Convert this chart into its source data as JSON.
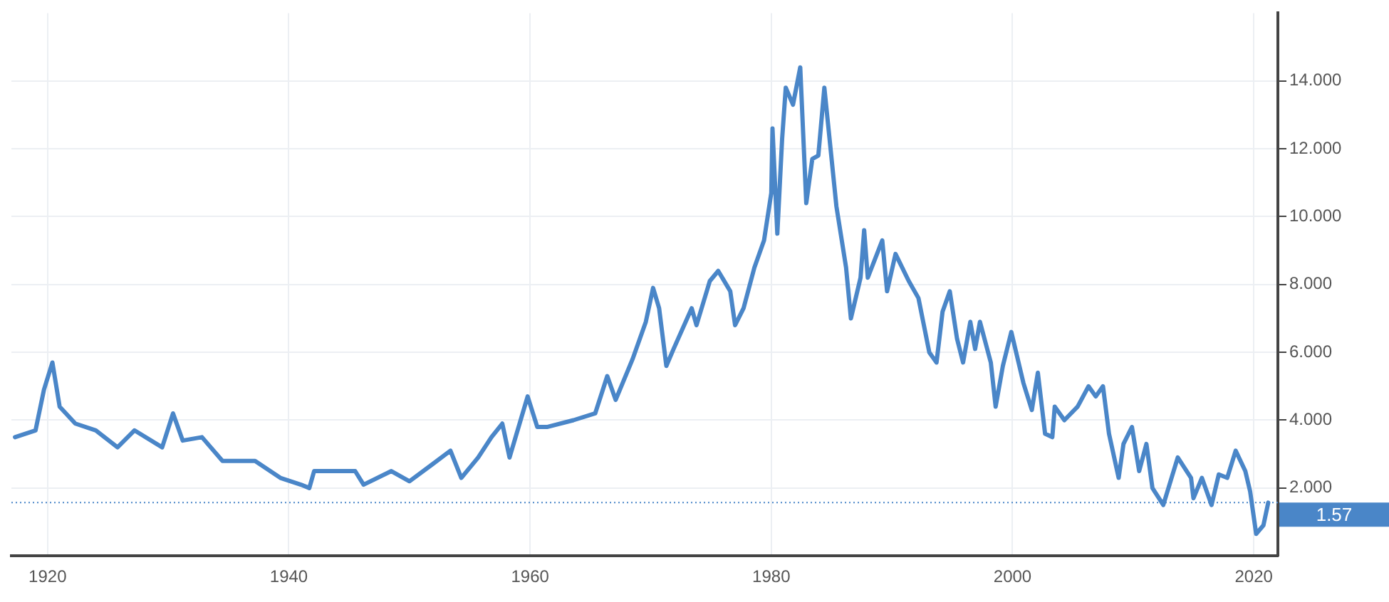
{
  "chart_data": {
    "type": "line",
    "color": "#4a86c8",
    "marker": "none",
    "grid": true,
    "x": [
      1917.3,
      1919,
      1919.7,
      1920.4,
      1921,
      1922.3,
      1924,
      1925.8,
      1927.2,
      1929.5,
      1930.4,
      1931.2,
      1932.8,
      1934.5,
      1937.2,
      1939.3,
      1941,
      1941.7,
      1942.1,
      1945.5,
      1946.2,
      1948.5,
      1950,
      1951.9,
      1953.4,
      1954.3,
      1955.7,
      1956.8,
      1957.7,
      1958.3,
      1959.8,
      1960.6,
      1961.4,
      1963.6,
      1965.4,
      1966.4,
      1967.1,
      1968.5,
      1969.6,
      1970.2,
      1970.7,
      1971.3,
      1971.9,
      1973.4,
      1973.8,
      1974.9,
      1975.6,
      1976.6,
      1977,
      1977.7,
      1978.6,
      1979.4,
      1980,
      1980.1,
      1980.5,
      1980.9,
      1981.2,
      1981.8,
      1982.4,
      1982.9,
      1983.4,
      1983.9,
      1984.4,
      1985.4,
      1986.2,
      1986.6,
      1987.4,
      1987.7,
      1988,
      1989.2,
      1989.6,
      1990.3,
      1991.4,
      1992.2,
      1993.1,
      1993.7,
      1994.2,
      1994.8,
      1995.4,
      1995.9,
      1996.5,
      1996.9,
      1997.3,
      1998.2,
      1998.6,
      1999.2,
      1999.9,
      2000.9,
      2001.6,
      2002.1,
      2002.7,
      2003.3,
      2003.5,
      2004.3,
      2005.4,
      2006.3,
      2006.9,
      2007.5,
      2008,
      2008.8,
      2009.2,
      2009.9,
      2010.5,
      2011.1,
      2011.6,
      2012.5,
      2013.7,
      2014.8,
      2015,
      2015.7,
      2016.5,
      2017.1,
      2017.8,
      2018.5,
      2019.3,
      2019.7,
      2020.2,
      2020.8,
      2021.2
    ],
    "values": [
      3.5,
      3.7,
      4.9,
      5.7,
      4.4,
      3.9,
      3.7,
      3.2,
      3.7,
      3.2,
      4.2,
      3.4,
      3.5,
      2.8,
      2.8,
      2.3,
      2.1,
      2.0,
      2.5,
      2.5,
      2.1,
      2.5,
      2.2,
      2.7,
      3.1,
      2.3,
      2.9,
      3.5,
      3.9,
      2.9,
      4.7,
      3.8,
      3.8,
      4.0,
      4.2,
      5.3,
      4.6,
      5.8,
      6.9,
      7.9,
      7.3,
      5.6,
      6.1,
      7.3,
      6.8,
      8.1,
      8.4,
      7.8,
      6.8,
      7.3,
      8.5,
      9.3,
      10.7,
      12.6,
      9.5,
      12.3,
      13.8,
      13.3,
      14.4,
      10.4,
      11.7,
      11.8,
      13.8,
      10.3,
      8.5,
      7.0,
      8.2,
      9.6,
      8.2,
      9.3,
      7.8,
      8.9,
      8.1,
      7.6,
      6.0,
      5.7,
      7.2,
      7.8,
      6.4,
      5.7,
      6.9,
      6.1,
      6.9,
      5.7,
      4.4,
      5.6,
      6.6,
      5.1,
      4.3,
      5.4,
      3.6,
      3.5,
      4.4,
      4.0,
      4.4,
      5.0,
      4.7,
      5.0,
      3.6,
      2.3,
      3.3,
      3.8,
      2.5,
      3.3,
      2.0,
      1.5,
      2.9,
      2.3,
      1.7,
      2.3,
      1.5,
      2.4,
      2.3,
      3.1,
      2.5,
      1.9,
      0.65,
      0.9,
      1.57
    ],
    "xlim": [
      1917,
      2022
    ],
    "xticks": [
      1920,
      1940,
      1960,
      1980,
      2000,
      2020
    ],
    "ylim": [
      0,
      16
    ],
    "yticks": [
      {
        "value": 2,
        "label": "2.000"
      },
      {
        "value": 4,
        "label": "4.000"
      },
      {
        "value": 6,
        "label": "6.000"
      },
      {
        "value": 8,
        "label": "8.000"
      },
      {
        "value": 10,
        "label": "10.000"
      },
      {
        "value": 12,
        "label": "12.000"
      },
      {
        "value": 14,
        "label": "14.000"
      }
    ],
    "ref_lines": [
      {
        "axis": "y",
        "value": 1.57,
        "label": "1.57",
        "color": "#4a86c8",
        "line_style": "dotted"
      }
    ]
  }
}
